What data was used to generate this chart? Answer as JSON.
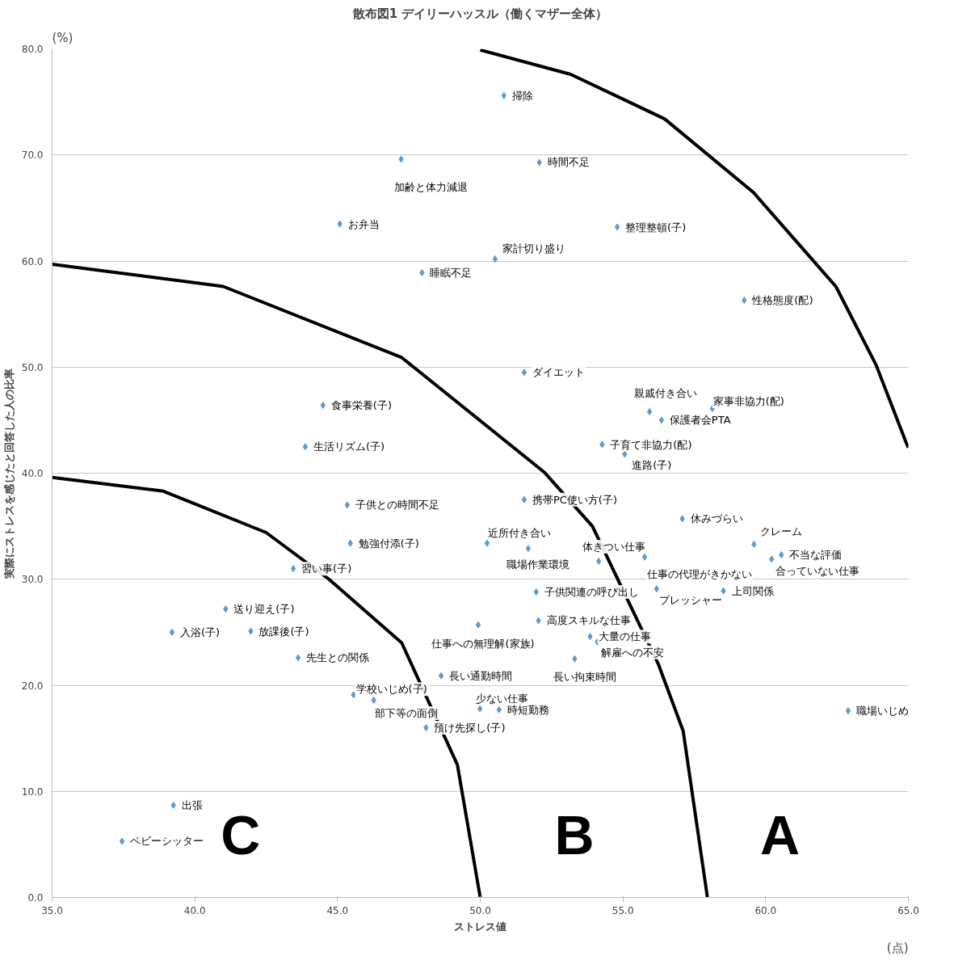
{
  "chart_data": {
    "type": "scatter",
    "title": "散布図1 デイリーハッスル（働くマザー全体）",
    "xlabel": "ストレス値",
    "ylabel": "実際にストレスを感じたと回答した人の比率",
    "xlim": [
      35,
      65
    ],
    "ylim": [
      0,
      80
    ],
    "xticks": [
      {
        "value": 35,
        "label": "35.0"
      },
      {
        "value": 40,
        "label": "40.0"
      },
      {
        "value": 45,
        "label": "45.0"
      },
      {
        "value": 50,
        "label": "50.0"
      },
      {
        "value": 55,
        "label": "55.0"
      },
      {
        "value": 60,
        "label": "60.0"
      },
      {
        "value": 65,
        "label": "65.0"
      }
    ],
    "yticks": [
      {
        "value": 0,
        "label": "0.0"
      },
      {
        "value": 10,
        "label": "10.0"
      },
      {
        "value": 20,
        "label": "20.0"
      },
      {
        "value": 30,
        "label": "30.0"
      },
      {
        "value": 40,
        "label": "40.0"
      },
      {
        "value": 50,
        "label": "50.0"
      },
      {
        "value": 60,
        "label": "60.0"
      },
      {
        "value": 70,
        "label": "70.0"
      },
      {
        "value": 80,
        "label": "80.0"
      }
    ],
    "grid": "y",
    "series": [
      {
        "color": "#5b9bd5",
        "marker": "diamond",
        "x": [
          50.83,
          47.23,
          52.07,
          45.08,
          54.8,
          50.52,
          47.96,
          59.25,
          51.54,
          55.93,
          58.13,
          56.35,
          54.27,
          55.06,
          44.49,
          43.87,
          45.34,
          51.54,
          45.45,
          50.24,
          51.68,
          54.15,
          55.76,
          43.45,
          51.96,
          56.18,
          58.52,
          57.08,
          59.59,
          60.55,
          60.21,
          62.89,
          52.04,
          49.93,
          53.85,
          54.1,
          53.31,
          48.63,
          49.99,
          50.66,
          48.1,
          41.08,
          39.2,
          41.96,
          43.62,
          45.56,
          46.27,
          39.25,
          37.45
        ],
        "values": [
          75.6,
          69.6,
          69.3,
          63.5,
          63.2,
          60.2,
          58.9,
          56.3,
          49.5,
          45.8,
          46.1,
          45.0,
          42.7,
          41.8,
          46.4,
          42.5,
          37.0,
          37.5,
          33.4,
          33.4,
          32.9,
          31.7,
          32.1,
          31.0,
          28.8,
          29.1,
          28.9,
          35.7,
          33.3,
          32.3,
          31.9,
          17.6,
          26.1,
          25.7,
          24.6,
          24.1,
          22.5,
          20.9,
          17.8,
          17.7,
          16.0,
          27.2,
          25.0,
          25.1,
          22.6,
          19.1,
          18.6,
          8.7,
          5.3
        ]
      },
      {
        "type": "line",
        "color": "#000000",
        "line_style": "solid",
        "x": [
          35.0,
          38.9,
          42.5,
          44.7,
          47.25,
          49.2,
          50.0
        ],
        "values": [
          39.6,
          38.3,
          34.4,
          30.0,
          24.0,
          12.5,
          0.0
        ]
      },
      {
        "type": "line",
        "color": "#000000",
        "line_style": "solid",
        "x": [
          35.0,
          41.0,
          47.25,
          52.24,
          53.93,
          56.24,
          57.11,
          57.96
        ],
        "values": [
          59.7,
          57.6,
          50.9,
          40.1,
          35.0,
          22.0,
          15.7,
          0.0
        ]
      },
      {
        "type": "line",
        "color": "#000000",
        "line_style": "solid",
        "x": [
          50.0,
          53.17,
          56.46,
          59.56,
          62.46,
          63.87,
          64.92,
          65.0
        ],
        "values": [
          79.9,
          77.6,
          73.4,
          66.5,
          57.6,
          50.2,
          42.9,
          42.4
        ]
      }
    ],
    "annotations": [
      {
        "text": "掃除",
        "x": 50.83,
        "y": 75.6
      },
      {
        "text": "加齢と体力減退",
        "x": 47.23,
        "y": 69.6
      },
      {
        "text": "時間不足",
        "x": 52.07,
        "y": 69.3
      },
      {
        "text": "お弁当",
        "x": 45.08,
        "y": 63.5
      },
      {
        "text": "整理整頓(子)",
        "x": 54.8,
        "y": 63.2
      },
      {
        "text": "家計切り盛り",
        "x": 50.52,
        "y": 60.2
      },
      {
        "text": "睡眠不足",
        "x": 47.96,
        "y": 58.9
      },
      {
        "text": "性格態度(配)",
        "x": 59.25,
        "y": 56.3
      },
      {
        "text": "ダイエット",
        "x": 51.54,
        "y": 49.5
      },
      {
        "text": "親戚付き合い",
        "x": 55.93,
        "y": 45.8
      },
      {
        "text": "家事非協力(配)",
        "x": 58.13,
        "y": 46.1
      },
      {
        "text": "保護者会PTA",
        "x": 56.35,
        "y": 45.0
      },
      {
        "text": "子育て非協力(配)",
        "x": 54.27,
        "y": 42.7
      },
      {
        "text": "進路(子)",
        "x": 55.06,
        "y": 41.8
      },
      {
        "text": "食事栄養(子)",
        "x": 44.49,
        "y": 46.4
      },
      {
        "text": "生活リズム(子)",
        "x": 43.87,
        "y": 42.5
      },
      {
        "text": "子供との時間不足",
        "x": 45.34,
        "y": 37.0
      },
      {
        "text": "携帯PC使い方(子)",
        "x": 51.54,
        "y": 37.5
      },
      {
        "text": "勉強付添(子)",
        "x": 45.45,
        "y": 33.4
      },
      {
        "text": "近所付き合い",
        "x": 50.24,
        "y": 33.4
      },
      {
        "text": "職場作業環境",
        "x": 51.68,
        "y": 32.9
      },
      {
        "text": "体きつい仕事",
        "x": 54.15,
        "y": 31.7
      },
      {
        "text": "仕事の代理がきかない",
        "x": 55.76,
        "y": 32.1
      },
      {
        "text": "習い事(子)",
        "x": 43.45,
        "y": 31.0
      },
      {
        "text": "子供関連の呼び出し",
        "x": 51.96,
        "y": 28.8
      },
      {
        "text": "プレッシャー",
        "x": 56.18,
        "y": 29.1
      },
      {
        "text": "上司関係",
        "x": 58.52,
        "y": 28.9
      },
      {
        "text": "休みづらい",
        "x": 57.08,
        "y": 35.7
      },
      {
        "text": "クレーム",
        "x": 59.59,
        "y": 33.3
      },
      {
        "text": "不当な評価",
        "x": 60.55,
        "y": 32.3
      },
      {
        "text": "合っていない仕事",
        "x": 60.21,
        "y": 31.9
      },
      {
        "text": "職場いじめ",
        "x": 62.89,
        "y": 17.6
      },
      {
        "text": "高度スキルな仕事",
        "x": 52.04,
        "y": 26.1
      },
      {
        "text": "仕事への無理解(家族)",
        "x": 49.93,
        "y": 25.7
      },
      {
        "text": "大量の仕事",
        "x": 53.85,
        "y": 24.6
      },
      {
        "text": "解雇への不安",
        "x": 54.1,
        "y": 24.1
      },
      {
        "text": "長い拘束時間",
        "x": 53.31,
        "y": 22.5
      },
      {
        "text": "長い通勤時間",
        "x": 48.63,
        "y": 20.9
      },
      {
        "text": "少ない仕事",
        "x": 49.99,
        "y": 17.8
      },
      {
        "text": "時短勤務",
        "x": 50.66,
        "y": 17.7
      },
      {
        "text": "預け先探し(子)",
        "x": 48.1,
        "y": 16.0
      },
      {
        "text": "送り迎え(子)",
        "x": 41.08,
        "y": 27.2
      },
      {
        "text": "入浴(子)",
        "x": 39.2,
        "y": 25.0
      },
      {
        "text": "放課後(子)",
        "x": 41.96,
        "y": 25.1
      },
      {
        "text": "先生との関係",
        "x": 43.62,
        "y": 22.6
      },
      {
        "text": "学校いじめ(子)",
        "x": 45.56,
        "y": 19.1
      },
      {
        "text": "部下等の面倒",
        "x": 46.27,
        "y": 18.6
      },
      {
        "text": "出張",
        "x": 39.25,
        "y": 8.7
      },
      {
        "text": "ベビーシッター",
        "x": 37.45,
        "y": 5.3
      },
      "C",
      "B",
      "A",
      "(%)",
      "(点)"
    ]
  }
}
